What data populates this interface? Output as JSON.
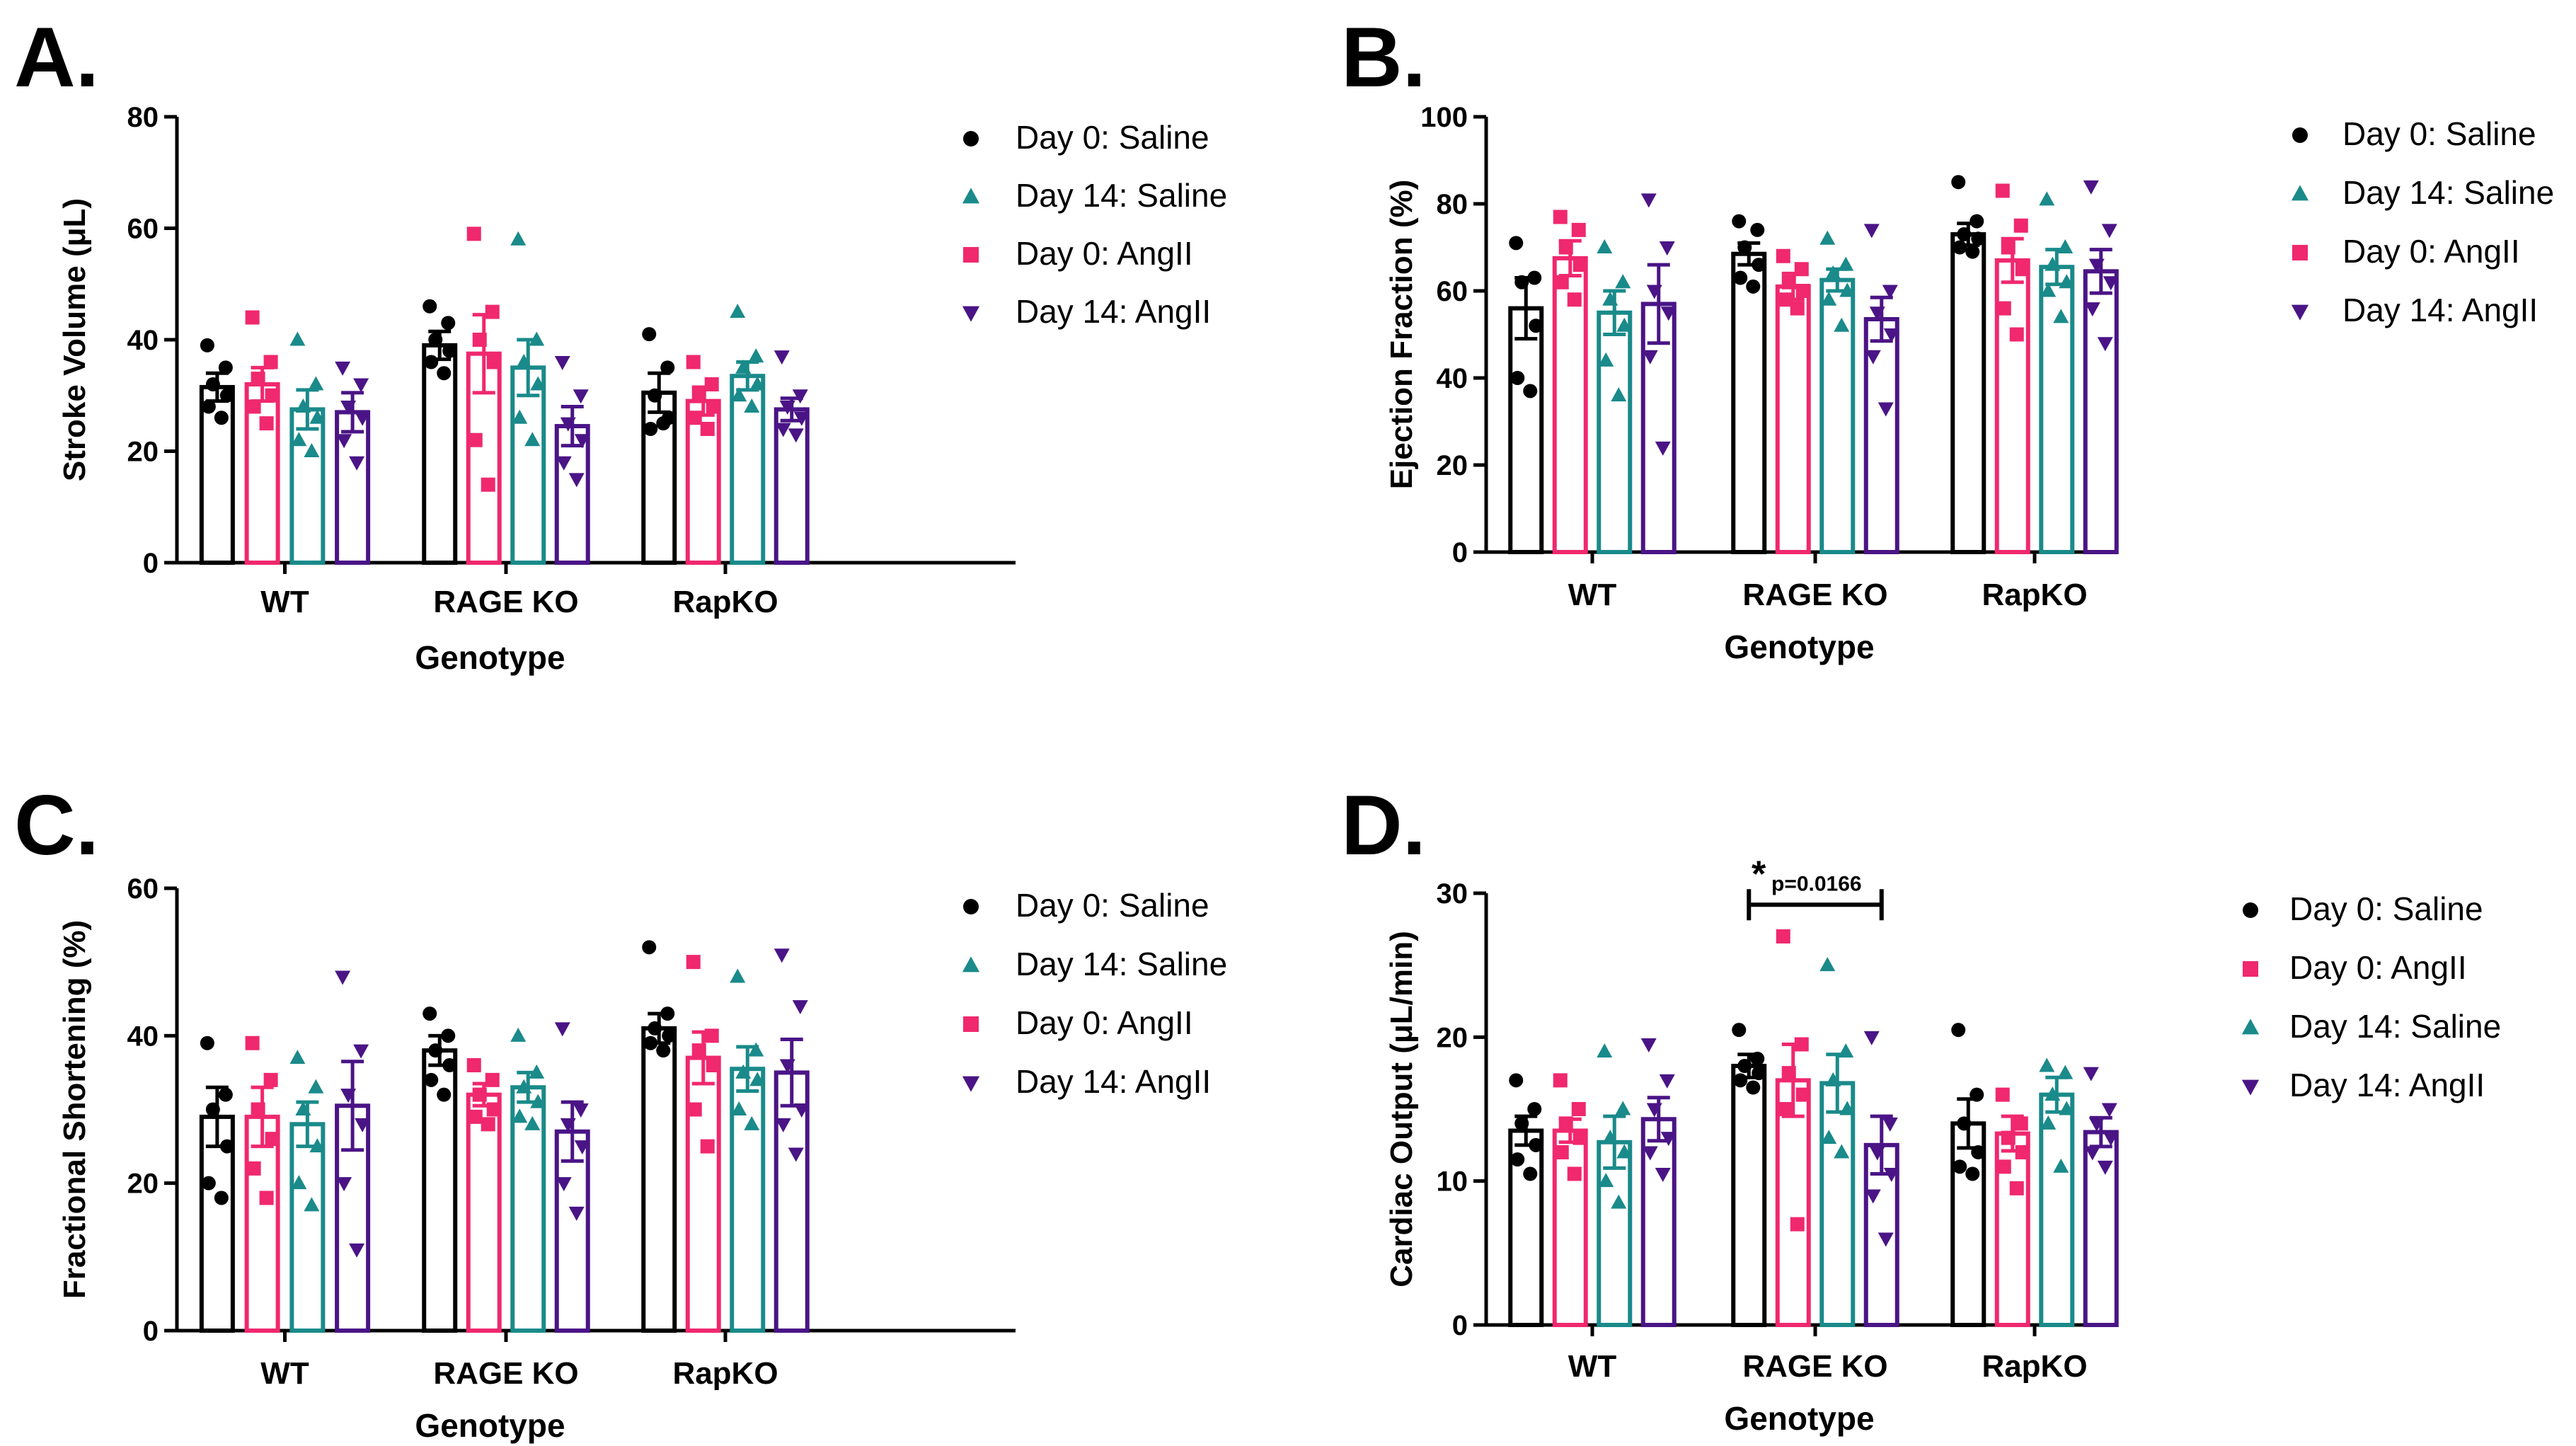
{
  "colors": {
    "Day 0: Saline": "#000000",
    "Day 14: Saline": "#1a8a8a",
    "Day 0: AngII": "#f0286e",
    "Day 14: AngII": "#4a1486"
  },
  "chart_data": [
    {
      "type": "bar",
      "panel": "A.",
      "ylabel": "Stroke Volume (μL)",
      "xlabel": "Genotype",
      "ylim": [
        0,
        80
      ],
      "yticks": [
        0,
        20,
        40,
        60,
        80
      ],
      "categories": [
        "WT",
        "RAGE KO",
        "RapKO"
      ],
      "legend": [
        "Day 0: Saline",
        "Day 14: Saline",
        "Day 0: AngII",
        "Day 14: AngII"
      ],
      "series": [
        {
          "name": "Day 0: Saline",
          "values": [
            31.5,
            39,
            30.5
          ],
          "sem": [
            2.5,
            2.5,
            3.5
          ],
          "points": [
            [
              39,
              35,
              32,
              30,
              28,
              26
            ],
            [
              46,
              43,
              40,
              38,
              36,
              34
            ],
            [
              41,
              35,
              30,
              26,
              24,
              25
            ]
          ]
        },
        {
          "name": "Day 0: AngII",
          "values": [
            32,
            37.5,
            29
          ],
          "sem": [
            3,
            7,
            2.5
          ],
          "points": [
            [
              44,
              36,
              33,
              30,
              28,
              25
            ],
            [
              59,
              45,
              40,
              36,
              22,
              14
            ],
            [
              36,
              32,
              30,
              28,
              26,
              24
            ]
          ]
        },
        {
          "name": "Day 14: Saline",
          "values": [
            27.5,
            35,
            33.5
          ],
          "sem": [
            3.5,
            5,
            2.5
          ],
          "points": [
            [
              40,
              32,
              28,
              26,
              22,
              20
            ],
            [
              58,
              40,
              36,
              32,
              26,
              22
            ],
            [
              45,
              37,
              35,
              32,
              30,
              28
            ]
          ]
        },
        {
          "name": "Day 14: AngII",
          "values": [
            27,
            24.5,
            27.5
          ],
          "sem": [
            3.5,
            3.5,
            2
          ],
          "points": [
            [
              35,
              32,
              28,
              26,
              22,
              18
            ],
            [
              36,
              30,
              25,
              22,
              18,
              15
            ],
            [
              37,
              30,
              28,
              26,
              24,
              23
            ]
          ]
        }
      ]
    },
    {
      "type": "bar",
      "panel": "B.",
      "ylabel": "Ejection Fraction (%)",
      "xlabel": "Genotype",
      "ylim": [
        0,
        100
      ],
      "yticks": [
        0,
        20,
        40,
        60,
        80,
        100
      ],
      "categories": [
        "WT",
        "RAGE KO",
        "RapKO"
      ],
      "legend": [
        "Day 0: Saline",
        "Day 14: Saline",
        "Day 0: AngII",
        "Day 14: AngII"
      ],
      "series": [
        {
          "name": "Day 0: Saline",
          "values": [
            56,
            68.5,
            73
          ],
          "sem": [
            7,
            2.5,
            2.5
          ],
          "points": [
            [
              71,
              63,
              62,
              52,
              40,
              37
            ],
            [
              76,
              74,
              70,
              66,
              63,
              61
            ],
            [
              85,
              76,
              73,
              72,
              70,
              69
            ]
          ]
        },
        {
          "name": "Day 0: AngII",
          "values": [
            67.5,
            61,
            67
          ],
          "sem": [
            4,
            3,
            5
          ],
          "points": [
            [
              77,
              74,
              70,
              66,
              62,
              58
            ],
            [
              68,
              65,
              62,
              60,
              58,
              56
            ],
            [
              83,
              75,
              70,
              65,
              56,
              50
            ]
          ]
        },
        {
          "name": "Day 14: Saline",
          "values": [
            55,
            62.5,
            65.5
          ],
          "sem": [
            5,
            2.5,
            4
          ],
          "points": [
            [
              70,
              62,
              58,
              52,
              44,
              36
            ],
            [
              72,
              66,
              64,
              60,
              58,
              52
            ],
            [
              81,
              70,
              66,
              62,
              60,
              54
            ]
          ]
        },
        {
          "name": "Day 14: AngII",
          "values": [
            57,
            53.5,
            64.5
          ],
          "sem": [
            9,
            5,
            5
          ],
          "points": [
            [
              81,
              70,
              60,
              55,
              45,
              24
            ],
            [
              74,
              60,
              55,
              50,
              45,
              33
            ],
            [
              84,
              74,
              66,
              62,
              56,
              48
            ]
          ]
        }
      ]
    },
    {
      "type": "bar",
      "panel": "C.",
      "ylabel": "Fractional Shortening (%)",
      "xlabel": "Genotype",
      "ylim": [
        0,
        60
      ],
      "yticks": [
        0,
        20,
        40,
        60
      ],
      "categories": [
        "WT",
        "RAGE KO",
        "RapKO"
      ],
      "legend": [
        "Day 0: Saline",
        "Day 14: Saline",
        "Day 0: AngII",
        "Day 14: AngII"
      ],
      "series": [
        {
          "name": "Day 0: Saline",
          "values": [
            29,
            38,
            41
          ],
          "sem": [
            4,
            2,
            2
          ],
          "points": [
            [
              39,
              32,
              30,
              25,
              20,
              18
            ],
            [
              43,
              40,
              38,
              36,
              34,
              32
            ],
            [
              52,
              43,
              41,
              40,
              39,
              38
            ]
          ]
        },
        {
          "name": "Day 0: AngII",
          "values": [
            29,
            32,
            37
          ],
          "sem": [
            4,
            1.5,
            3.5
          ],
          "points": [
            [
              39,
              34,
              30,
              26,
              22,
              18
            ],
            [
              36,
              34,
              32,
              30,
              29,
              28
            ],
            [
              50,
              40,
              38,
              36,
              30,
              25
            ]
          ]
        },
        {
          "name": "Day 14: Saline",
          "values": [
            28,
            33,
            35.5
          ],
          "sem": [
            3,
            2,
            3
          ],
          "points": [
            [
              37,
              33,
              30,
              25,
              20,
              17
            ],
            [
              40,
              35,
              33,
              31,
              29,
              28
            ],
            [
              48,
              38,
              35,
              34,
              30,
              28
            ]
          ]
        },
        {
          "name": "Day 14: AngII",
          "values": [
            30.5,
            27,
            35
          ],
          "sem": [
            6,
            4,
            4.5
          ],
          "points": [
            [
              48,
              38,
              32,
              28,
              20,
              11
            ],
            [
              41,
              30,
              28,
              25,
              20,
              16
            ],
            [
              51,
              44,
              36,
              30,
              28,
              24
            ]
          ]
        }
      ]
    },
    {
      "type": "bar",
      "panel": "D.",
      "ylabel": "Cardiac Output (μL/min)",
      "xlabel": "Genotype",
      "ylim": [
        0,
        30
      ],
      "yticks": [
        0,
        10,
        20,
        30
      ],
      "categories": [
        "WT",
        "RAGE KO",
        "RapKO"
      ],
      "legend": [
        "Day 0: Saline",
        "Day 0: AngII",
        "Day 14: Saline",
        "Day 14: AngII"
      ],
      "annotation": {
        "star": "*",
        "text": "p=0.0166",
        "from_group": 1,
        "from_series": 0,
        "to_series": 3
      },
      "series": [
        {
          "name": "Day 0: Saline",
          "values": [
            13.5,
            18,
            14
          ],
          "sem": [
            1,
            0.8,
            1.7
          ],
          "points": [
            [
              17,
              15,
              14,
              12.5,
              11.5,
              10.5
            ],
            [
              20.5,
              18.5,
              18,
              17.5,
              17,
              16.5
            ],
            [
              20.5,
              16,
              14,
              12,
              11,
              10.5
            ]
          ]
        },
        {
          "name": "Day 0: AngII",
          "values": [
            13.5,
            17,
            13.3
          ],
          "sem": [
            0.8,
            2.5,
            1.2
          ],
          "points": [
            [
              17,
              15,
              14,
              13,
              12,
              10.5
            ],
            [
              27,
              19.5,
              17.5,
              16,
              15,
              7
            ],
            [
              16,
              14,
              13,
              12,
              11,
              9.5
            ]
          ]
        },
        {
          "name": "Day 14: Saline",
          "values": [
            12.7,
            16.8,
            16
          ],
          "sem": [
            1.8,
            2,
            1.2
          ],
          "points": [
            [
              19,
              15,
              13,
              12,
              10,
              8.5
            ],
            [
              25,
              19,
              17,
              15,
              13,
              12
            ],
            [
              18,
              17.5,
              16,
              15,
              14,
              11
            ]
          ]
        },
        {
          "name": "Day 14: AngII",
          "values": [
            14.3,
            12.5,
            13.4
          ],
          "sem": [
            1.5,
            2,
            1
          ],
          "points": [
            [
              19.5,
              17,
              15,
              13,
              12,
              10.5
            ],
            [
              20,
              14,
              12,
              10.5,
              9,
              6
            ],
            [
              17.5,
              15,
              14,
              13,
              12,
              11
            ]
          ]
        }
      ]
    }
  ]
}
